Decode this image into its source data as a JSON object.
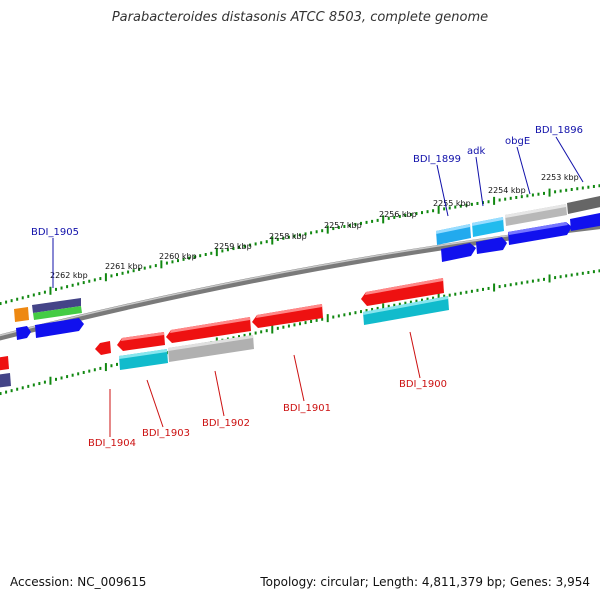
{
  "title": "Parabacteroides distasonis ATCC 8503, complete genome",
  "footer": {
    "accession": "Accession: NC_009615",
    "summary": "Topology: circular; Length: 4,811,379 bp; Genes: 3,954"
  },
  "colors": {
    "backbone": "#808080",
    "tick": "#118811",
    "forward_label": "#1111aa",
    "reverse_label": "#cc1111",
    "red": "#ee1111",
    "blue": "#1111ee",
    "cyan": "#11bbcc",
    "sky": "#22aaee",
    "gray": "#b0b0b0",
    "darkgray": "#666666",
    "orange": "#ee8811",
    "green": "#44cc44",
    "indigo": "#444488"
  },
  "kbp_ticks": [
    "2253 kbp",
    "2254 kbp",
    "2255 kbp",
    "2256 kbp",
    "2257 kbp",
    "2258 kbp",
    "2259 kbp",
    "2260 kbp",
    "2261 kbp",
    "2262 kbp"
  ],
  "gene_labels": {
    "forward": [
      "BDI_1896",
      "obgE",
      "adk",
      "BDI_1899",
      "BDI_1905"
    ],
    "reverse": [
      "BDI_1900",
      "BDI_1901",
      "BDI_1902",
      "BDI_1903",
      "BDI_1904"
    ]
  }
}
